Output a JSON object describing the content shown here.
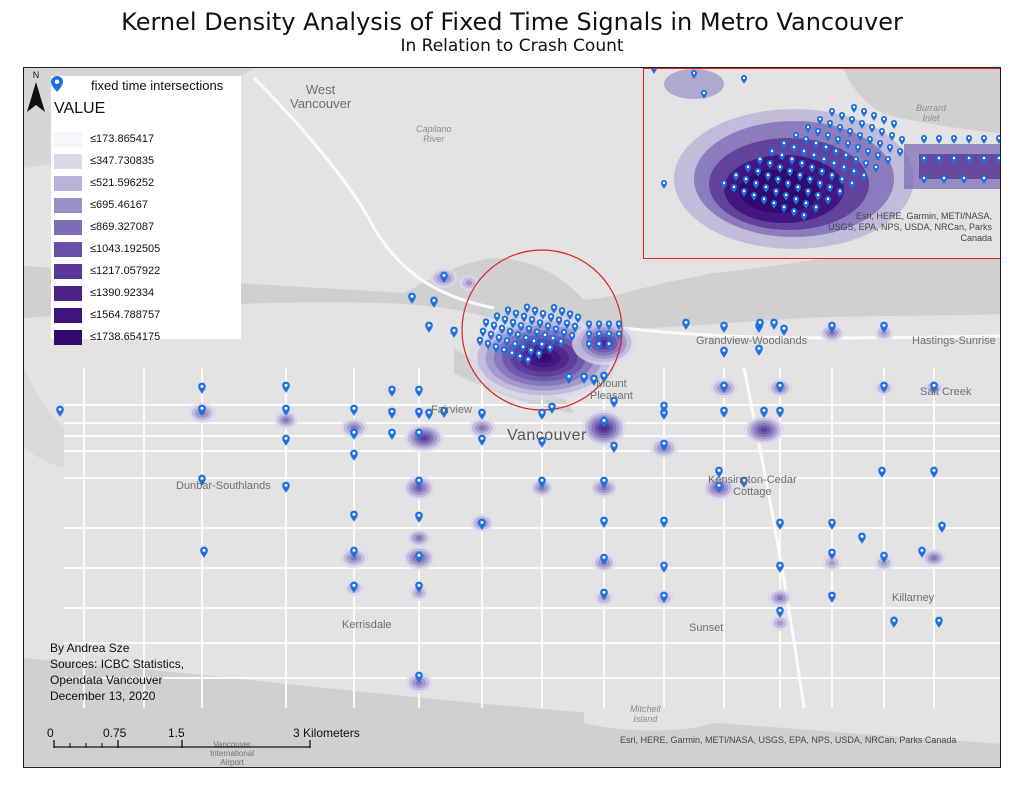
{
  "title": "Kernel Density Analysis of Fixed Time Signals in Metro Vancouver",
  "subtitle": "In Relation to Crash Count",
  "legend": {
    "point_label": "fixed time intersections",
    "heading": "VALUE",
    "classes": [
      {
        "label": "≤173.865417",
        "color": "#f7f5fb"
      },
      {
        "label": "≤347.730835",
        "color": "#dcd8ec"
      },
      {
        "label": "≤521.596252",
        "color": "#b9b2d8"
      },
      {
        "label": "≤695.46167",
        "color": "#9a8fc6"
      },
      {
        "label": "≤869.327087",
        "color": "#7d6db5"
      },
      {
        "label": "≤1043.192505",
        "color": "#6a4fa6"
      },
      {
        "label": "≤1217.057922",
        "color": "#5a3798"
      },
      {
        "label": "≤1390.92334",
        "color": "#4c2289"
      },
      {
        "label": "≤1564.788757",
        "color": "#3f127e"
      },
      {
        "label": "≤1738.654175",
        "color": "#32096e"
      }
    ]
  },
  "place_labels": {
    "west_vancouver": "West\nVancouver",
    "capilano_river": "Capilano\nRiver",
    "burrard_inlet": "Burrard\nInlet",
    "grandview": "Grandview-Woodlands",
    "hastings": "Hastings-Sunrise",
    "fairview": "Fairview",
    "mount_pleasant": "Mount\nPleasant",
    "vancouver": "Vancouver",
    "dunbar": "Dunbar-Southlands",
    "kensington": "Kensington-Cedar\nCottage",
    "kerrisdale": "Kerrisdale",
    "sunset": "Sunset",
    "killarney": "Killarney",
    "mitchell_island": "Mitchell\nIsland",
    "airport": "Vancouver\nInternational\nAirport",
    "salt_creek": "Salt Creek"
  },
  "inset": {
    "attribution": "Esri, HERE, Garmin, METI/NASA,\nUSGS, EPA, NPS, USDA, NRCan, Parks\nCanada"
  },
  "attribution": "Esri, HERE, Garmin, METI/NASA, USGS, EPA, NPS, USDA, NRCan, Parks Canada",
  "credits": {
    "author": "By Andrea Sze",
    "sources_line1": "Sources: ICBC Statistics,",
    "sources_line2": "Opendata Vancouver",
    "date": "December 13, 2020"
  },
  "scalebar": {
    "ticks": [
      "0",
      "0.75",
      "1.5",
      "3 Kilometers"
    ]
  },
  "north_label": "N",
  "colors": {
    "pin": "#1e6fe0",
    "highlight_circle": "#e02020",
    "land": "#e3e3e3",
    "water": "#d0d0d0",
    "road": "#fafafa"
  }
}
